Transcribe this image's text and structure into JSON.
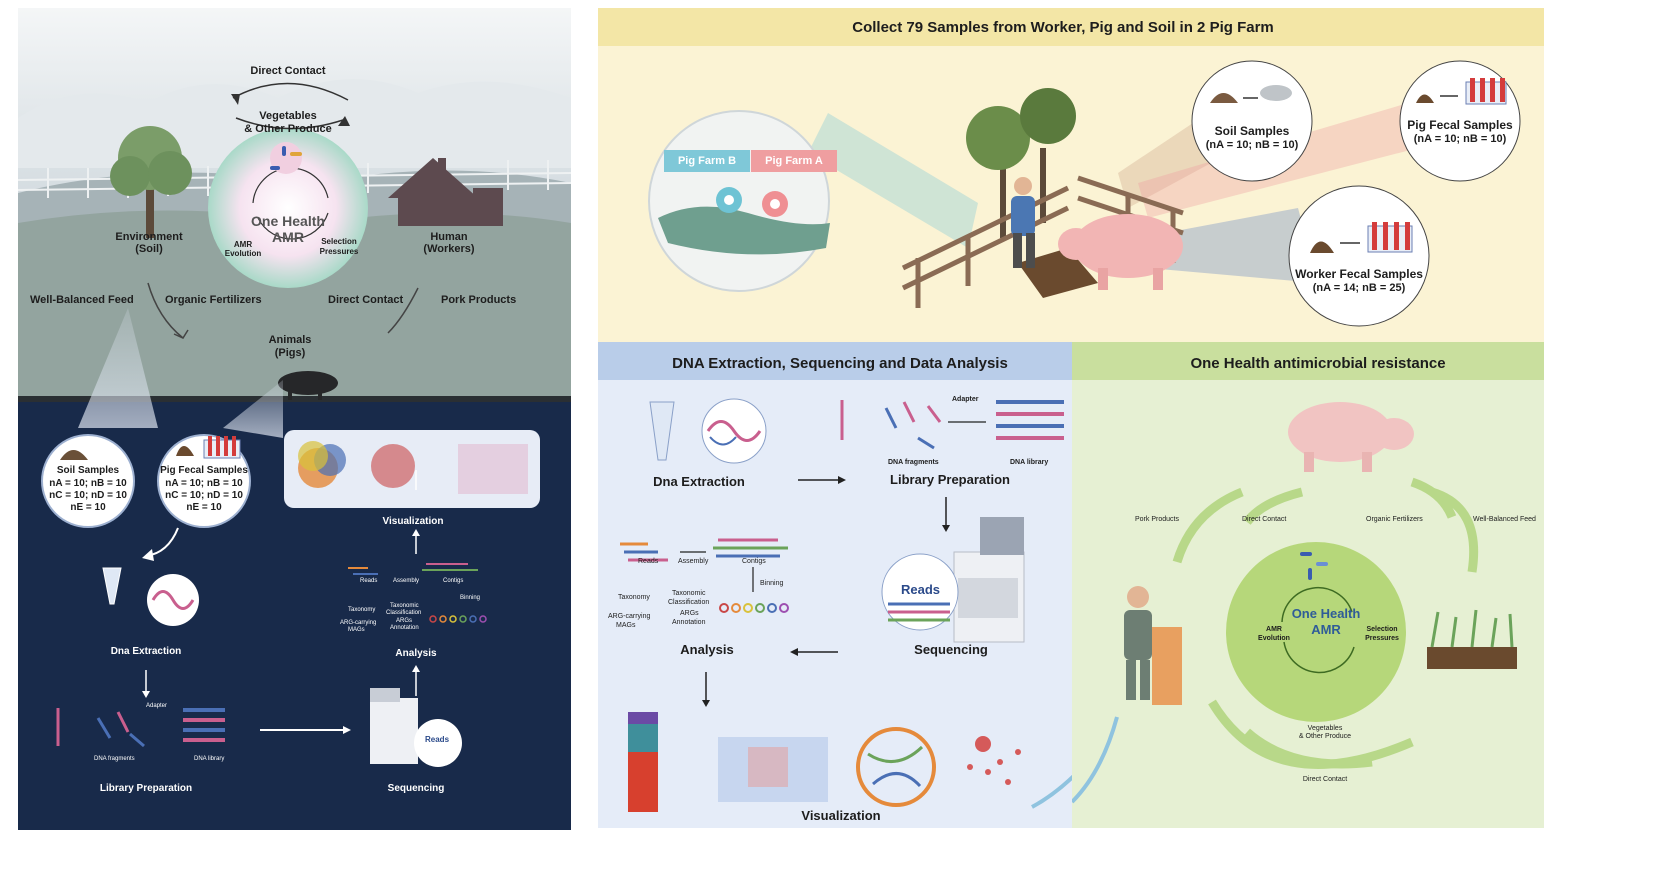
{
  "left_panel": {
    "top_cycle": {
      "direct_contact": "Direct Contact",
      "vegetables": "Vegetables",
      "other_produce": "& Other Produce",
      "center_title_1": "One Health",
      "center_title_2": "AMR",
      "amr_evolution_1": "AMR",
      "amr_evolution_2": "Evolution",
      "selection_1": "Selection",
      "selection_2": "Pressures",
      "environment_1": "Environment",
      "environment_2": "(Soil)",
      "human_1": "Human",
      "human_2": "(Workers)",
      "well_balanced_feed": "Well-Balanced Feed",
      "organic_fertilizers": "Organic Fertilizers",
      "direct_contact_2": "Direct Contact",
      "pork_products": "Pork Products",
      "animals_1": "Animals",
      "animals_2": "(Pigs)"
    },
    "soil_samples": {
      "title": "Soil Samples",
      "line1": "nA = 10; nB = 10",
      "line2": "nC = 10; nD = 10",
      "line3": "nE = 10"
    },
    "pig_samples": {
      "title": "Pig Fecal Samples",
      "line1": "nA = 10; nB = 10",
      "line2": "nC = 10; nD = 10",
      "line3": "nE = 10"
    },
    "workflow": {
      "dna_extraction": "Dna Extraction",
      "library_preparation": "Library Preparation",
      "adapter": "Adapter",
      "dna_fragments": "DNA fragments",
      "dna_library": "DNA library",
      "sequencing": "Sequencing",
      "reads_badge": "Reads",
      "analysis": "Analysis",
      "visualization": "Visualization",
      "reads": "Reads",
      "assembly": "Assembly",
      "contigs": "Contigs",
      "binning": "Binning",
      "taxonomy": "Taxonomy",
      "taxonomic_classification_1": "Taxonomic",
      "taxonomic_classification_2": "Classification",
      "args_annotation_1": "ARGs",
      "args_annotation_2": "Annotation",
      "arg_carrying_1": "ARG-carrying",
      "arg_carrying_2": "MAGs"
    }
  },
  "right_top": {
    "header": "Collect 79 Samples from  Worker, Pig and Soil in 2 Pig Farm",
    "farm_b": "Pig Farm B",
    "farm_a": "Pig Farm A",
    "soil_title": "Soil Samples",
    "soil_counts": "(nA = 10; nB = 10)",
    "pig_title": "Pig Fecal Samples",
    "pig_counts": "(nA = 10; nB = 10)",
    "worker_title": "Worker Fecal Samples",
    "worker_counts": "(nA = 14; nB = 25)"
  },
  "right_bottom_left": {
    "header": "DNA Extraction, Sequencing and Data Analysis",
    "dna_extraction": "Dna Extraction",
    "library_preparation": "Library Preparation",
    "adapter": "Adapter",
    "dna_fragments": "DNA fragments",
    "dna_library": "DNA library",
    "sequencing": "Sequencing",
    "reads_badge": "Reads",
    "analysis": "Analysis",
    "visualization": "Visualization",
    "reads": "Reads",
    "assembly": "Assembly",
    "contigs": "Contigs",
    "binning": "Binning",
    "taxonomy": "Taxonomy",
    "taxonomic_classification_1": "Taxonomic",
    "taxonomic_classification_2": "Classification",
    "args_annotation_1": "ARGs",
    "args_annotation_2": "Annotation",
    "arg_carrying_1": "ARG-carrying",
    "arg_carrying_2": "MAGs"
  },
  "right_bottom_right": {
    "header": "One Health antimicrobial resistance",
    "pork_products": "Pork Products",
    "direct_contact": "Direct Contact",
    "organic_fertilizers": "Organic Fertilizers",
    "well_balanced_feed": "Well-Balanced Feed",
    "center_title_1": "One Health",
    "center_title_2": "AMR",
    "amr_evolution_1": "AMR",
    "amr_evolution_2": "Evolution",
    "selection_1": "Selection",
    "selection_2": "Pressures",
    "vegetables_1": "Vegetables",
    "vegetables_2": "& Other Produce",
    "direct_contact_bottom": "Direct Contact"
  },
  "colors": {
    "left_sky": "#c9d3d8",
    "left_ground_dark": "#182a4a",
    "right_top_bg": "#fbf3d4",
    "right_top_header": "#f3e6a6",
    "right_bl_bg": "#e5ecf8",
    "right_bl_header": "#b9cde9",
    "right_br_bg": "#e6f0d3",
    "right_br_header": "#c9df9e",
    "farm_b_tag": "#7fc8d8",
    "farm_a_tag": "#ef9ea0"
  }
}
